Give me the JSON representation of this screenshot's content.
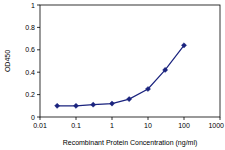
{
  "chart_data": {
    "type": "line",
    "xlabel": "Recombinant Protein Concentration (ng/ml)",
    "ylabel": "OD450",
    "x": [
      0.03,
      0.1,
      0.3,
      1,
      3,
      10,
      30,
      100
    ],
    "values": [
      0.1,
      0.1,
      0.11,
      0.12,
      0.16,
      0.25,
      0.42,
      0.64
    ],
    "color": "#1a237e",
    "marker": "diamond",
    "log": "x",
    "grid": false,
    "xlim": [
      0.01,
      1000
    ],
    "xticks": [
      0.01,
      0.1,
      1,
      10,
      100,
      1000
    ],
    "ylim": [
      0,
      1
    ],
    "yticks": [
      0,
      0.2,
      0.4,
      0.6,
      0.8,
      1
    ]
  }
}
